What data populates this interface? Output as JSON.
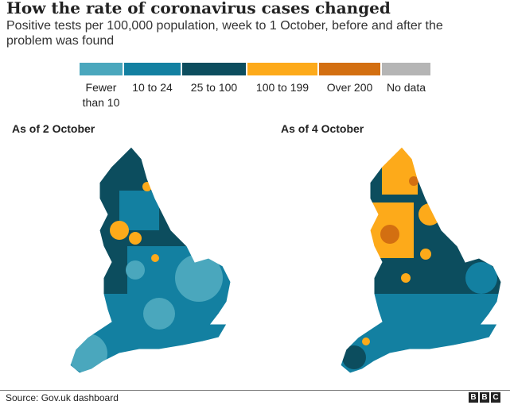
{
  "title": "How the rate of coronavirus cases changed",
  "subtitle": "Positive tests per 100,000 population, week to 1 October, before and after the problem was found",
  "legend": [
    {
      "label": "Fewer than 10",
      "color": "#4aa7bd"
    },
    {
      "label": "10 to 24",
      "color": "#1380a1"
    },
    {
      "label": "25 to 100",
      "color": "#0c4d5e"
    },
    {
      "label": "100 to 199",
      "color": "#fdaa1a"
    },
    {
      "label": "Over 200",
      "color": "#d36f11"
    },
    {
      "label": "No data",
      "color": "#b5b5b5"
    }
  ],
  "maps": [
    {
      "label": "As of 2 October"
    },
    {
      "label": "As of 4 October"
    }
  ],
  "source": "Source: Gov.uk dashboard",
  "logo": "BBC"
}
